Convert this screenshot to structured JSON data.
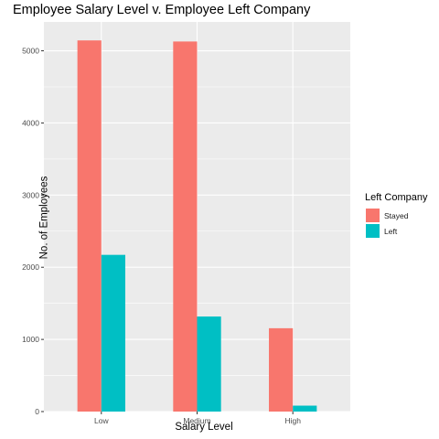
{
  "chart_data": {
    "type": "bar",
    "title": "Employee Salary Level v. Employee Left Company",
    "xlabel": "Salary Level",
    "ylabel": "No. of Employees",
    "categories": [
      "Low",
      "Medium",
      "High"
    ],
    "series": [
      {
        "name": "Stayed",
        "color": "#F8766D",
        "values": [
          5144,
          5129,
          1155
        ]
      },
      {
        "name": "Left",
        "color": "#00BFC4",
        "values": [
          2172,
          1317,
          82
        ]
      }
    ],
    "ylim": [
      0,
      5400
    ],
    "yticks": [
      0,
      1000,
      2000,
      3000,
      4000,
      5000
    ],
    "legend": {
      "title": "Left Company",
      "position": "right"
    },
    "grid": true,
    "panel_background": "#EBEBEB"
  }
}
